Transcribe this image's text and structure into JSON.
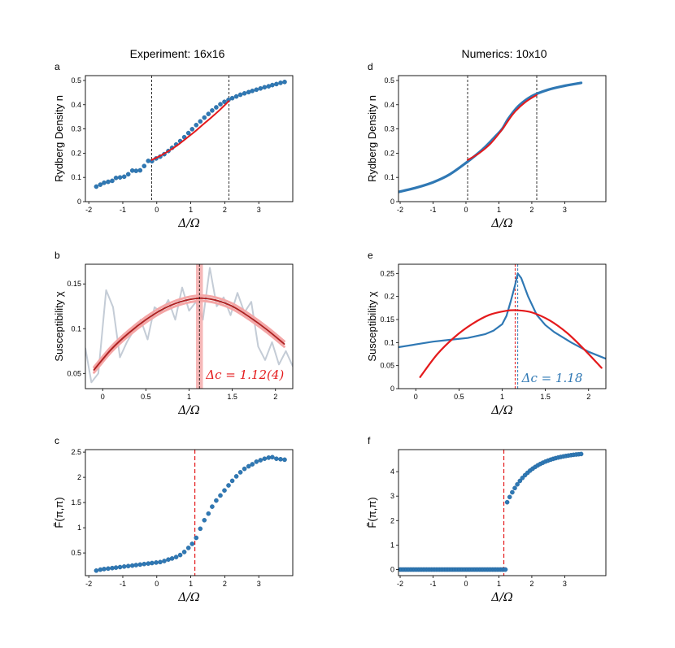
{
  "column_titles": {
    "left": "Experiment: 16x16",
    "right": "Numerics: 10x10"
  },
  "colors": {
    "blue": "#2f78b4",
    "red": "#e41a1c",
    "darkred": "#b02323",
    "gray": "#c4ccd6",
    "band": "#f4a6a6"
  },
  "chart_data": [
    {
      "id": "a",
      "label": "a",
      "type": "scatter",
      "ylabel": "Rydberg Density n",
      "xlabel": "Δ/Ω",
      "xlim": [
        -2.1,
        4.0
      ],
      "ylim": [
        0,
        0.52
      ],
      "xticks": [
        -2,
        -1,
        0,
        1,
        2,
        3
      ],
      "xtick_labels": [
        "-2",
        "-1",
        "0",
        "1",
        "2",
        "3"
      ],
      "yticks": [
        0,
        0.1,
        0.2,
        0.3,
        0.4,
        0.5
      ],
      "ytick_labels": [
        "0",
        "0.1",
        "0.2",
        "0.3",
        "0.4",
        "0.5"
      ],
      "vlines": [
        -0.15,
        2.12
      ],
      "points": {
        "x": [
          -1.78,
          -1.66,
          -1.55,
          -1.43,
          -1.31,
          -1.2,
          -1.08,
          -0.96,
          -0.84,
          -0.72,
          -0.61,
          -0.49,
          -0.37,
          -0.25,
          -0.14,
          -0.02,
          0.1,
          0.22,
          0.34,
          0.45,
          0.57,
          0.69,
          0.81,
          0.93,
          1.04,
          1.16,
          1.28,
          1.4,
          1.52,
          1.63,
          1.75,
          1.87,
          1.99,
          2.11,
          2.22,
          2.34,
          2.46,
          2.58,
          2.7,
          2.81,
          2.93,
          3.05,
          3.17,
          3.29,
          3.4,
          3.52,
          3.64,
          3.76
        ],
        "y": [
          0.062,
          0.07,
          0.078,
          0.082,
          0.086,
          0.098,
          0.1,
          0.103,
          0.113,
          0.128,
          0.127,
          0.129,
          0.147,
          0.168,
          0.167,
          0.178,
          0.186,
          0.196,
          0.209,
          0.222,
          0.236,
          0.25,
          0.266,
          0.283,
          0.299,
          0.316,
          0.331,
          0.347,
          0.362,
          0.376,
          0.389,
          0.402,
          0.412,
          0.42,
          0.427,
          0.434,
          0.441,
          0.447,
          0.452,
          0.457,
          0.462,
          0.467,
          0.472,
          0.476,
          0.481,
          0.485,
          0.49,
          0.494
        ]
      },
      "fit": {
        "x": [
          -0.15,
          0.1,
          0.35,
          0.6,
          0.85,
          1.1,
          1.35,
          1.6,
          1.85,
          2.12
        ],
        "y": [
          0.172,
          0.189,
          0.209,
          0.232,
          0.259,
          0.287,
          0.317,
          0.347,
          0.378,
          0.415
        ]
      }
    },
    {
      "id": "b",
      "label": "b",
      "type": "line",
      "ylabel": "Susceptibility χ",
      "xlabel": "Δ/Ω",
      "xlim": [
        -0.2,
        2.2
      ],
      "ylim": [
        0.033,
        0.172
      ],
      "xticks": [
        0,
        0.5,
        1,
        1.5,
        2
      ],
      "xtick_labels": [
        "0",
        "0.5",
        "1",
        "1.5",
        "2"
      ],
      "yticks": [
        0.05,
        0.1,
        0.15
      ],
      "ytick_labels": [
        "0.05",
        "0.1",
        "0.15"
      ],
      "raw": {
        "x": [
          -0.2,
          -0.13,
          -0.05,
          0.04,
          0.12,
          0.2,
          0.28,
          0.36,
          0.44,
          0.52,
          0.6,
          0.68,
          0.76,
          0.84,
          0.92,
          1.0,
          1.08,
          1.16,
          1.24,
          1.32,
          1.4,
          1.48,
          1.56,
          1.64,
          1.72,
          1.8,
          1.88,
          1.96,
          2.04,
          2.12,
          2.2
        ],
        "y": [
          0.078,
          0.04,
          0.05,
          0.143,
          0.124,
          0.068,
          0.085,
          0.098,
          0.11,
          0.088,
          0.124,
          0.118,
          0.132,
          0.11,
          0.146,
          0.12,
          0.13,
          0.11,
          0.168,
          0.125,
          0.135,
          0.115,
          0.14,
          0.118,
          0.13,
          0.08,
          0.065,
          0.085,
          0.06,
          0.075,
          0.058
        ]
      },
      "fit": {
        "x": [
          -0.1,
          0.1,
          0.3,
          0.5,
          0.7,
          0.9,
          1.12,
          1.3,
          1.5,
          1.7,
          1.9,
          2.1
        ],
        "y": [
          0.054,
          0.077,
          0.095,
          0.11,
          0.122,
          0.13,
          0.134,
          0.132,
          0.125,
          0.113,
          0.099,
          0.083
        ]
      },
      "vline": 1.12,
      "band": [
        1.08,
        1.16
      ],
      "annotation": "Δc = 1.12(4)"
    },
    {
      "id": "c",
      "label": "c",
      "type": "scatter",
      "ylabel": "F̃(π,π)",
      "xlabel": "Δ/Ω",
      "xlim": [
        -2.1,
        4.0
      ],
      "ylim": [
        0.05,
        2.55
      ],
      "xticks": [
        -2,
        -1,
        0,
        1,
        2,
        3
      ],
      "xtick_labels": [
        "-2",
        "-1",
        "0",
        "1",
        "2",
        "3"
      ],
      "yticks": [
        0.5,
        1,
        1.5,
        2,
        2.5
      ],
      "ytick_labels": [
        "0.5",
        "1",
        "1.5",
        "2",
        "2.5"
      ],
      "vline": 1.12,
      "points": {
        "x": [
          -1.78,
          -1.66,
          -1.55,
          -1.43,
          -1.31,
          -1.2,
          -1.08,
          -0.96,
          -0.84,
          -0.72,
          -0.61,
          -0.49,
          -0.37,
          -0.25,
          -0.14,
          -0.02,
          0.1,
          0.22,
          0.34,
          0.45,
          0.57,
          0.69,
          0.81,
          0.93,
          1.04,
          1.16,
          1.28,
          1.4,
          1.52,
          1.63,
          1.75,
          1.87,
          1.99,
          2.11,
          2.22,
          2.34,
          2.46,
          2.58,
          2.7,
          2.81,
          2.93,
          3.05,
          3.17,
          3.29,
          3.4,
          3.52,
          3.64,
          3.76
        ],
        "y": [
          0.15,
          0.17,
          0.18,
          0.19,
          0.2,
          0.21,
          0.22,
          0.23,
          0.24,
          0.25,
          0.26,
          0.27,
          0.28,
          0.29,
          0.3,
          0.31,
          0.32,
          0.34,
          0.37,
          0.39,
          0.42,
          0.46,
          0.52,
          0.6,
          0.68,
          0.8,
          0.98,
          1.15,
          1.28,
          1.42,
          1.54,
          1.64,
          1.74,
          1.84,
          1.93,
          2.02,
          2.1,
          2.17,
          2.22,
          2.26,
          2.31,
          2.34,
          2.37,
          2.39,
          2.4,
          2.37,
          2.36,
          2.35
        ]
      }
    },
    {
      "id": "d",
      "label": "d",
      "type": "line",
      "ylabel": "Rydberg Density n",
      "xlabel": "Δ/Ω",
      "xlim": [
        -2.05,
        4.25
      ],
      "ylim": [
        0,
        0.52
      ],
      "xticks": [
        -2,
        -1,
        0,
        1,
        2,
        3
      ],
      "xtick_labels": [
        "-2",
        "-1",
        "0",
        "1",
        "2",
        "3"
      ],
      "yticks": [
        0,
        0.1,
        0.2,
        0.3,
        0.4,
        0.5
      ],
      "ytick_labels": [
        "0",
        "0.1",
        "0.2",
        "0.3",
        "0.4",
        "0.5"
      ],
      "vlines": [
        0.05,
        2.15
      ],
      "curve": {
        "x": [
          -2.05,
          -1.5,
          -1.0,
          -0.5,
          0.0,
          0.5,
          0.9,
          1.1,
          1.3,
          1.6,
          2.0,
          2.5,
          3.0,
          3.5
        ],
        "y": [
          0.04,
          0.058,
          0.08,
          0.112,
          0.16,
          0.215,
          0.27,
          0.3,
          0.345,
          0.395,
          0.435,
          0.462,
          0.478,
          0.49
        ]
      },
      "fit": {
        "x": [
          0.05,
          0.4,
          0.75,
          1.1,
          1.45,
          1.8,
          2.15
        ],
        "y": [
          0.172,
          0.2,
          0.24,
          0.298,
          0.365,
          0.41,
          0.44
        ]
      }
    },
    {
      "id": "e",
      "label": "e",
      "type": "line",
      "ylabel": "Susceptibility χ",
      "xlabel": "Δ/Ω",
      "xlim": [
        -0.2,
        2.2
      ],
      "ylim": [
        0,
        0.27
      ],
      "xticks": [
        0,
        0.5,
        1,
        1.5,
        2
      ],
      "xtick_labels": [
        "0",
        "0.5",
        "1",
        "1.5",
        "2"
      ],
      "yticks": [
        0,
        0.05,
        0.1,
        0.15,
        0.2,
        0.25
      ],
      "ytick_labels": [
        "0",
        "0.05",
        "0.1",
        "0.15",
        "0.2",
        "0.25"
      ],
      "curve": {
        "x": [
          -0.2,
          0.0,
          0.2,
          0.4,
          0.6,
          0.8,
          0.9,
          1.0,
          1.05,
          1.1,
          1.15,
          1.18,
          1.22,
          1.3,
          1.4,
          1.5,
          1.6,
          1.8,
          2.0,
          2.2
        ],
        "y": [
          0.09,
          0.096,
          0.102,
          0.106,
          0.11,
          0.118,
          0.126,
          0.14,
          0.158,
          0.19,
          0.225,
          0.25,
          0.24,
          0.2,
          0.16,
          0.138,
          0.123,
          0.1,
          0.08,
          0.065
        ]
      },
      "fit": {
        "x": [
          0.05,
          0.25,
          0.45,
          0.65,
          0.85,
          1.05,
          1.18,
          1.35,
          1.55,
          1.75,
          1.95,
          2.15
        ],
        "y": [
          0.025,
          0.075,
          0.112,
          0.14,
          0.16,
          0.169,
          0.17,
          0.165,
          0.148,
          0.121,
          0.085,
          0.045
        ]
      },
      "vline_red": 1.15,
      "vline_blue": 1.18,
      "annotation": "Δc = 1.18"
    },
    {
      "id": "f",
      "label": "f",
      "type": "scatter",
      "ylabel": "F̃(π,π)",
      "xlabel": "Δ/Ω",
      "xlim": [
        -2.05,
        4.25
      ],
      "ylim": [
        -0.25,
        4.9
      ],
      "xticks": [
        -2,
        -1,
        0,
        1,
        2,
        3
      ],
      "xtick_labels": [
        "-2",
        "-1",
        "0",
        "1",
        "2",
        "3"
      ],
      "yticks": [
        0,
        1,
        2,
        3,
        4
      ],
      "ytick_labels": [
        "0",
        "1",
        "2",
        "3",
        "4"
      ],
      "vline": 1.15,
      "zero_range": [
        -2.0,
        1.2
      ],
      "rise": {
        "x0": 1.25,
        "x1": 3.5,
        "y0": 2.75,
        "y1": 4.72,
        "n": 30
      }
    }
  ]
}
